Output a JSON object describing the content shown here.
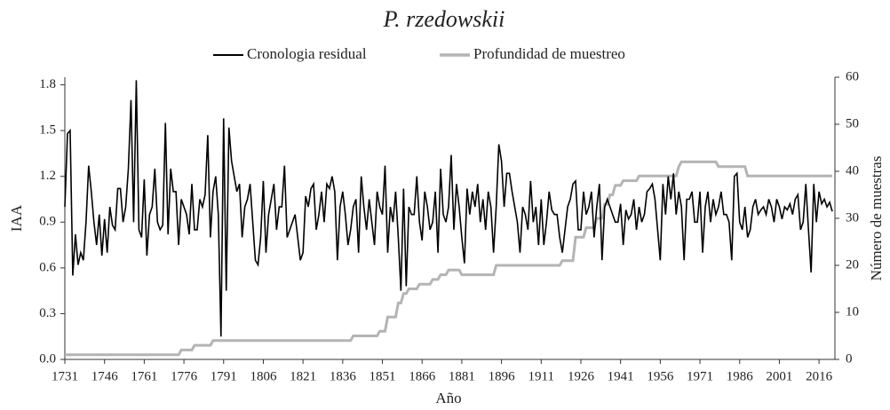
{
  "chart_data": {
    "type": "line",
    "title": "P. rzedowskii",
    "xlabel": "Año",
    "ylabel": "IAA",
    "y2label": "Número de muestras",
    "xlim": [
      1731,
      2022
    ],
    "xticks": [
      1731,
      1746,
      1761,
      1776,
      1791,
      1806,
      1821,
      1836,
      1851,
      1866,
      1881,
      1896,
      1911,
      1926,
      1941,
      1956,
      1971,
      1986,
      2001,
      2016
    ],
    "ylim": [
      0,
      1.85
    ],
    "yticks": [
      {
        "value": 0,
        "label": "0.0"
      },
      0.3,
      0.6,
      0.9,
      1.2,
      1.5,
      1.8
    ],
    "y2lim": [
      0,
      60
    ],
    "y2ticks": [
      0,
      10,
      20,
      30,
      40,
      50,
      60
    ],
    "x": [
      1731,
      1732,
      1733,
      1734,
      1735,
      1736,
      1737,
      1738,
      1739,
      1740,
      1741,
      1742,
      1743,
      1744,
      1745,
      1746,
      1747,
      1748,
      1749,
      1750,
      1751,
      1752,
      1753,
      1754,
      1755,
      1756,
      1757,
      1758,
      1759,
      1760,
      1761,
      1762,
      1763,
      1764,
      1765,
      1766,
      1767,
      1768,
      1769,
      1770,
      1771,
      1772,
      1773,
      1774,
      1775,
      1776,
      1777,
      1778,
      1779,
      1780,
      1781,
      1782,
      1783,
      1784,
      1785,
      1786,
      1787,
      1788,
      1789,
      1790,
      1791,
      1792,
      1793,
      1794,
      1795,
      1796,
      1797,
      1798,
      1799,
      1800,
      1801,
      1802,
      1803,
      1804,
      1805,
      1806,
      1807,
      1808,
      1809,
      1810,
      1811,
      1812,
      1813,
      1814,
      1815,
      1816,
      1817,
      1818,
      1819,
      1820,
      1821,
      1822,
      1823,
      1824,
      1825,
      1826,
      1827,
      1828,
      1829,
      1830,
      1831,
      1832,
      1833,
      1834,
      1835,
      1836,
      1837,
      1838,
      1839,
      1840,
      1841,
      1842,
      1843,
      1844,
      1845,
      1846,
      1847,
      1848,
      1849,
      1850,
      1851,
      1852,
      1853,
      1854,
      1855,
      1856,
      1857,
      1858,
      1859,
      1860,
      1861,
      1862,
      1863,
      1864,
      1865,
      1866,
      1867,
      1868,
      1869,
      1870,
      1871,
      1872,
      1873,
      1874,
      1875,
      1876,
      1877,
      1878,
      1879,
      1880,
      1881,
      1882,
      1883,
      1884,
      1885,
      1886,
      1887,
      1888,
      1889,
      1890,
      1891,
      1892,
      1893,
      1894,
      1895,
      1896,
      1897,
      1898,
      1899,
      1900,
      1901,
      1902,
      1903,
      1904,
      1905,
      1906,
      1907,
      1908,
      1909,
      1910,
      1911,
      1912,
      1913,
      1914,
      1915,
      1916,
      1917,
      1918,
      1919,
      1920,
      1921,
      1922,
      1923,
      1924,
      1925,
      1926,
      1927,
      1928,
      1929,
      1930,
      1931,
      1932,
      1933,
      1934,
      1935,
      1936,
      1937,
      1938,
      1939,
      1940,
      1941,
      1942,
      1943,
      1944,
      1945,
      1946,
      1947,
      1948,
      1949,
      1950,
      1951,
      1952,
      1953,
      1954,
      1955,
      1956,
      1957,
      1958,
      1959,
      1960,
      1961,
      1962,
      1963,
      1964,
      1965,
      1966,
      1967,
      1968,
      1969,
      1970,
      1971,
      1972,
      1973,
      1974,
      1975,
      1976,
      1977,
      1978,
      1979,
      1980,
      1981,
      1982,
      1983,
      1984,
      1985,
      1986,
      1987,
      1988,
      1989,
      1990,
      1991,
      1992,
      1993,
      1994,
      1995,
      1996,
      1997,
      1998,
      1999,
      2000,
      2001,
      2002,
      2003,
      2004,
      2005,
      2006,
      2007,
      2008,
      2009,
      2010,
      2011,
      2012,
      2013,
      2014,
      2015,
      2016,
      2017,
      2018,
      2019,
      2020,
      2021
    ],
    "series": [
      {
        "name": "Cronologia residual",
        "color": "#000000",
        "values": [
          1.0,
          1.48,
          1.5,
          0.55,
          0.82,
          0.62,
          0.7,
          0.65,
          0.9,
          1.27,
          1.1,
          0.9,
          0.75,
          0.95,
          0.68,
          0.92,
          0.7,
          1.0,
          0.88,
          0.85,
          1.12,
          1.12,
          0.9,
          1.0,
          1.25,
          1.7,
          0.9,
          1.83,
          0.85,
          0.8,
          1.18,
          0.68,
          0.95,
          1.0,
          1.25,
          0.9,
          0.85,
          0.88,
          1.55,
          0.82,
          1.25,
          1.1,
          1.1,
          0.75,
          1.05,
          1.0,
          0.95,
          0.82,
          1.15,
          0.85,
          0.85,
          1.05,
          1.0,
          1.08,
          1.47,
          0.8,
          1.1,
          1.2,
          0.95,
          0.15,
          1.58,
          0.45,
          1.52,
          1.3,
          1.2,
          1.1,
          1.15,
          0.8,
          1.0,
          1.05,
          1.15,
          0.9,
          0.65,
          0.62,
          0.8,
          1.17,
          0.7,
          0.95,
          1.05,
          1.15,
          0.85,
          1.0,
          1.0,
          1.27,
          0.8,
          0.85,
          0.9,
          0.95,
          0.8,
          0.65,
          0.7,
          1.07,
          1.0,
          1.12,
          1.15,
          0.85,
          0.95,
          1.1,
          0.9,
          1.15,
          1.12,
          1.2,
          1.1,
          0.65,
          1.0,
          1.1,
          0.95,
          0.75,
          0.85,
          1.0,
          1.05,
          0.7,
          1.2,
          1.0,
          0.85,
          1.05,
          0.9,
          0.75,
          1.1,
          1.0,
          0.95,
          1.27,
          0.7,
          1.0,
          0.9,
          1.1,
          0.8,
          0.45,
          1.12,
          0.48,
          1.0,
          0.95,
          0.95,
          1.2,
          0.9,
          0.78,
          1.1,
          1.0,
          0.85,
          0.9,
          1.1,
          0.7,
          1.25,
          0.95,
          0.9,
          1.0,
          1.34,
          0.85,
          1.15,
          1.0,
          0.8,
          0.63,
          1.12,
          0.95,
          1.1,
          1.0,
          1.15,
          0.9,
          1.05,
          0.85,
          1.1,
          1.0,
          0.7,
          1.0,
          1.41,
          1.3,
          1.0,
          1.22,
          1.22,
          1.1,
          1.0,
          0.9,
          0.7,
          1.0,
          0.95,
          0.85,
          1.17,
          0.9,
          1.0,
          0.75,
          1.05,
          0.75,
          0.9,
          1.1,
          0.98,
          0.95,
          0.95,
          0.8,
          0.7,
          0.85,
          1.0,
          1.05,
          1.15,
          1.17,
          0.85,
          0.85,
          1.1,
          0.95,
          1.0,
          1.1,
          0.8,
          1.0,
          1.15,
          0.65,
          1.0,
          1.05,
          1.0,
          0.95,
          0.9,
          0.9,
          1.02,
          0.75,
          0.98,
          0.92,
          0.95,
          1.05,
          0.85,
          1.0,
          0.9,
          0.95,
          1.1,
          1.12,
          1.15,
          1.05,
          0.85,
          0.65,
          1.15,
          0.95,
          1.2,
          1.05,
          1.22,
          0.95,
          1.1,
          1.0,
          0.65,
          1.05,
          1.05,
          1.1,
          0.9,
          0.9,
          1.1,
          0.7,
          1.0,
          1.1,
          0.9,
          1.05,
          0.95,
          1.0,
          1.1,
          0.95,
          0.95,
          0.9,
          0.65,
          1.2,
          1.22,
          0.9,
          0.85,
          1.0,
          0.8,
          0.85,
          1.0,
          1.05,
          0.95,
          0.98,
          1.0,
          0.95,
          1.05,
          1.0,
          0.9,
          1.05,
          1.0,
          0.92,
          1.0,
          0.98,
          1.02,
          0.95,
          1.05,
          1.08,
          0.85,
          0.9,
          1.15,
          0.85,
          0.57,
          1.15,
          0.9,
          1.1,
          1.02,
          1.05,
          1.0,
          1.03,
          0.97
        ]
      },
      {
        "name": "Profundidad de muestreo",
        "color": "#b4b4b4",
        "axis": "y2",
        "values": [
          1,
          1,
          1,
          1,
          1,
          1,
          1,
          1,
          1,
          1,
          1,
          1,
          1,
          1,
          1,
          1,
          1,
          1,
          1,
          1,
          1,
          1,
          1,
          1,
          1,
          1,
          1,
          1,
          1,
          1,
          1,
          1,
          1,
          1,
          1,
          1,
          1,
          1,
          1,
          1,
          1,
          1,
          1,
          1,
          2,
          2,
          2,
          2,
          2,
          3,
          3,
          3,
          3,
          3,
          3,
          3,
          4,
          4,
          4,
          4,
          4,
          4,
          4,
          4,
          4,
          4,
          4,
          4,
          4,
          4,
          4,
          4,
          4,
          4,
          4,
          4,
          4,
          4,
          4,
          4,
          4,
          4,
          4,
          4,
          4,
          4,
          4,
          4,
          4,
          4,
          4,
          4,
          4,
          4,
          4,
          4,
          4,
          4,
          4,
          4,
          4,
          4,
          4,
          4,
          4,
          4,
          4,
          4,
          4,
          5,
          5,
          5,
          5,
          5,
          5,
          5,
          5,
          5,
          5,
          6,
          6,
          6,
          9,
          9,
          9,
          9,
          12,
          12,
          14,
          14,
          15,
          15,
          15,
          15,
          16,
          16,
          16,
          16,
          16,
          17,
          17,
          17,
          18,
          18,
          18,
          19,
          19,
          19,
          19,
          19,
          18,
          18,
          18,
          18,
          18,
          18,
          18,
          18,
          18,
          18,
          18,
          18,
          18,
          20,
          20,
          20,
          20,
          20,
          20,
          20,
          20,
          20,
          20,
          20,
          20,
          20,
          20,
          20,
          20,
          20,
          20,
          20,
          20,
          20,
          20,
          20,
          20,
          20,
          21,
          21,
          21,
          21,
          21,
          26,
          26,
          26,
          26,
          28,
          28,
          28,
          28,
          30,
          30,
          30,
          33,
          33,
          35,
          35,
          37,
          37,
          37,
          38,
          38,
          38,
          38,
          38,
          38,
          39,
          39,
          39,
          39,
          39,
          39,
          39,
          39,
          39,
          39,
          39,
          39,
          39,
          39,
          39,
          41,
          42,
          42,
          42,
          42,
          42,
          42,
          42,
          42,
          42,
          42,
          42,
          42,
          42,
          42,
          41,
          41,
          41,
          41,
          41,
          41,
          41,
          41,
          41,
          41,
          41,
          39,
          39,
          39,
          39,
          39,
          39,
          39,
          39,
          39,
          39,
          39,
          39,
          39,
          39,
          39,
          39,
          39,
          39,
          39,
          39,
          39,
          39,
          39,
          39,
          39,
          39,
          39,
          39,
          39,
          39,
          39,
          39,
          39
        ]
      }
    ],
    "legend": "top"
  }
}
